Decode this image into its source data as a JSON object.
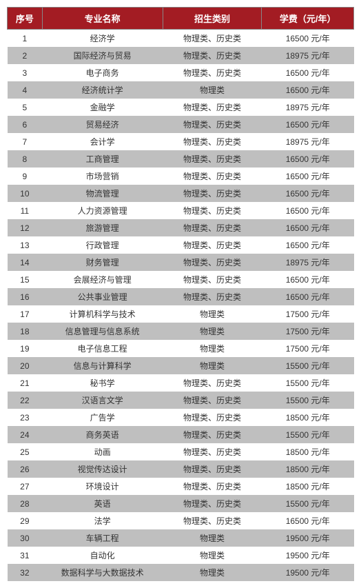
{
  "header_bg": "#a31c23",
  "header_fg": "#ffffff",
  "row_odd_bg": "#ffffff",
  "row_even_bg": "#bfbfbf",
  "fee_unit": "元/年",
  "columns": {
    "no": "序号",
    "name": "专业名称",
    "cat": "招生类别",
    "fee": "学费（元/年）"
  },
  "rows": [
    {
      "no": "1",
      "name": "经济学",
      "cat": "物理类、历史类",
      "fee": "16500"
    },
    {
      "no": "2",
      "name": "国际经济与贸易",
      "cat": "物理类、历史类",
      "fee": "18975"
    },
    {
      "no": "3",
      "name": "电子商务",
      "cat": "物理类、历史类",
      "fee": "16500"
    },
    {
      "no": "4",
      "name": "经济统计学",
      "cat": "物理类",
      "fee": "16500"
    },
    {
      "no": "5",
      "name": "金融学",
      "cat": "物理类、历史类",
      "fee": "18975"
    },
    {
      "no": "6",
      "name": "贸易经济",
      "cat": "物理类、历史类",
      "fee": "16500"
    },
    {
      "no": "7",
      "name": "会计学",
      "cat": "物理类、历史类",
      "fee": "18975"
    },
    {
      "no": "8",
      "name": "工商管理",
      "cat": "物理类、历史类",
      "fee": "16500"
    },
    {
      "no": "9",
      "name": "市场营销",
      "cat": "物理类、历史类",
      "fee": "16500"
    },
    {
      "no": "10",
      "name": "物流管理",
      "cat": "物理类、历史类",
      "fee": "16500"
    },
    {
      "no": "11",
      "name": "人力资源管理",
      "cat": "物理类、历史类",
      "fee": "16500"
    },
    {
      "no": "12",
      "name": "旅游管理",
      "cat": "物理类、历史类",
      "fee": "16500"
    },
    {
      "no": "13",
      "name": "行政管理",
      "cat": "物理类、历史类",
      "fee": "16500"
    },
    {
      "no": "14",
      "name": "财务管理",
      "cat": "物理类、历史类",
      "fee": "18975"
    },
    {
      "no": "15",
      "name": "会展经济与管理",
      "cat": "物理类、历史类",
      "fee": "16500"
    },
    {
      "no": "16",
      "name": "公共事业管理",
      "cat": "物理类、历史类",
      "fee": "16500"
    },
    {
      "no": "17",
      "name": "计算机科学与技术",
      "cat": "物理类",
      "fee": "17500"
    },
    {
      "no": "18",
      "name": "信息管理与信息系统",
      "cat": "物理类",
      "fee": "17500"
    },
    {
      "no": "19",
      "name": "电子信息工程",
      "cat": "物理类",
      "fee": "17500"
    },
    {
      "no": "20",
      "name": "信息与计算科学",
      "cat": "物理类",
      "fee": "15500"
    },
    {
      "no": "21",
      "name": "秘书学",
      "cat": "物理类、历史类",
      "fee": "15500"
    },
    {
      "no": "22",
      "name": "汉语言文学",
      "cat": "物理类、历史类",
      "fee": "15500"
    },
    {
      "no": "23",
      "name": "广告学",
      "cat": "物理类、历史类",
      "fee": "18500"
    },
    {
      "no": "24",
      "name": "商务英语",
      "cat": "物理类、历史类",
      "fee": "15500"
    },
    {
      "no": "25",
      "name": "动画",
      "cat": "物理类、历史类",
      "fee": "18500"
    },
    {
      "no": "26",
      "name": "视觉传达设计",
      "cat": "物理类、历史类",
      "fee": "18500"
    },
    {
      "no": "27",
      "name": "环境设计",
      "cat": "物理类、历史类",
      "fee": "18500"
    },
    {
      "no": "28",
      "name": "英语",
      "cat": "物理类、历史类",
      "fee": "15500"
    },
    {
      "no": "29",
      "name": "法学",
      "cat": "物理类、历史类",
      "fee": "16500"
    },
    {
      "no": "30",
      "name": "车辆工程",
      "cat": "物理类",
      "fee": "19500"
    },
    {
      "no": "31",
      "name": "自动化",
      "cat": "物理类",
      "fee": "19500"
    },
    {
      "no": "32",
      "name": "数据科学与大数据技术",
      "cat": "物理类",
      "fee": "19500"
    }
  ]
}
